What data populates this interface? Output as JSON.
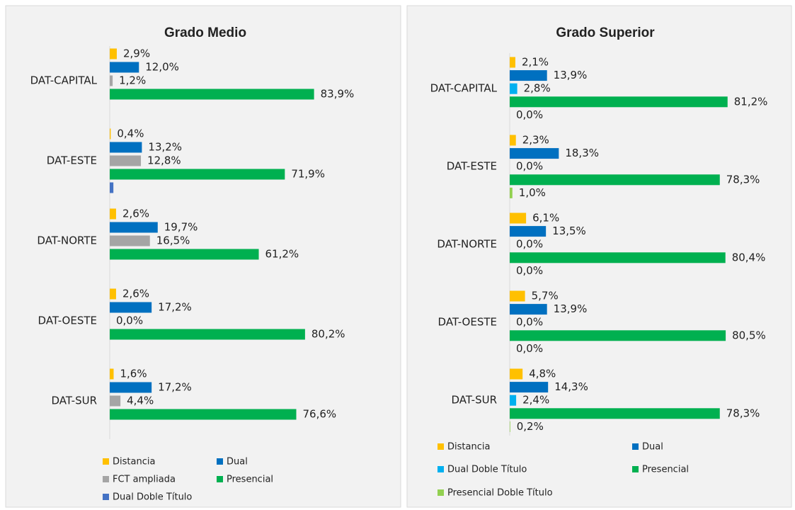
{
  "chart_data": [
    {
      "type": "bar",
      "orientation": "horizontal",
      "title": "Grado Medio",
      "categories": [
        "DAT-CAPITAL",
        "DAT-ESTE",
        "DAT-NORTE",
        "DAT-OESTE",
        "DAT-SUR"
      ],
      "series": [
        {
          "name": "Distancia",
          "color": "#ffc000",
          "values": [
            2.9,
            0.4,
            2.6,
            2.6,
            1.6
          ],
          "value_labels": [
            "2,9%",
            "0,4%",
            "2,6%",
            "2,6%",
            "1,6%"
          ]
        },
        {
          "name": "Dual",
          "color": "#0070c0",
          "values": [
            12.0,
            13.2,
            19.7,
            17.2,
            17.2
          ],
          "value_labels": [
            "12,0%",
            "13,2%",
            "19,7%",
            "17,2%",
            "17,2%"
          ]
        },
        {
          "name": "FCT ampliada",
          "color": "#a5a5a5",
          "values": [
            1.2,
            12.8,
            16.5,
            0.0,
            4.4
          ],
          "value_labels": [
            "1,2%",
            "12,8%",
            "16,5%",
            "0,0%",
            "4,4%"
          ]
        },
        {
          "name": "Presencial",
          "color": "#00b050",
          "values": [
            83.9,
            71.9,
            61.2,
            80.2,
            76.6
          ],
          "value_labels": [
            "83,9%",
            "71,9%",
            "61,2%",
            "80,2%",
            "76,6%"
          ]
        },
        {
          "name": "Dual Doble Título",
          "color": "#4472c4",
          "values": [
            null,
            1.5,
            null,
            null,
            null
          ]
        }
      ]
    },
    {
      "type": "bar",
      "orientation": "horizontal",
      "title": "Grado Superior",
      "categories": [
        "DAT-CAPITAL",
        "DAT-ESTE",
        "DAT-NORTE",
        "DAT-OESTE",
        "DAT-SUR"
      ],
      "series": [
        {
          "name": "Distancia",
          "color": "#ffc000",
          "values": [
            2.1,
            2.3,
            6.1,
            5.7,
            4.8
          ],
          "value_labels": [
            "2,1%",
            "2,3%",
            "6,1%",
            "5,7%",
            "4,8%"
          ]
        },
        {
          "name": "Dual",
          "color": "#0070c0",
          "values": [
            13.9,
            18.3,
            13.5,
            13.9,
            14.3
          ],
          "value_labels": [
            "13,9%",
            "18,3%",
            "13,5%",
            "13,9%",
            "14,3%"
          ]
        },
        {
          "name": "Dual Doble Título",
          "color": "#00b0f0",
          "values": [
            2.8,
            0.0,
            0.0,
            0.0,
            2.4
          ],
          "value_labels": [
            "2,8%",
            "0,0%",
            "0,0%",
            "0,0%",
            "2,4%"
          ]
        },
        {
          "name": "Presencial",
          "color": "#00b050",
          "values": [
            81.2,
            78.3,
            80.4,
            80.5,
            78.3
          ],
          "value_labels": [
            "81,2%",
            "78,3%",
            "80,4%",
            "80,5%",
            "78,3%"
          ]
        },
        {
          "name": "Presencial Doble Título",
          "color": "#92d050",
          "values": [
            0.0,
            1.0,
            0.0,
            0.0,
            0.2
          ],
          "value_labels": [
            "0,0%",
            "1,0%",
            "0,0%",
            "0,0%",
            "0,2%"
          ]
        }
      ]
    }
  ]
}
